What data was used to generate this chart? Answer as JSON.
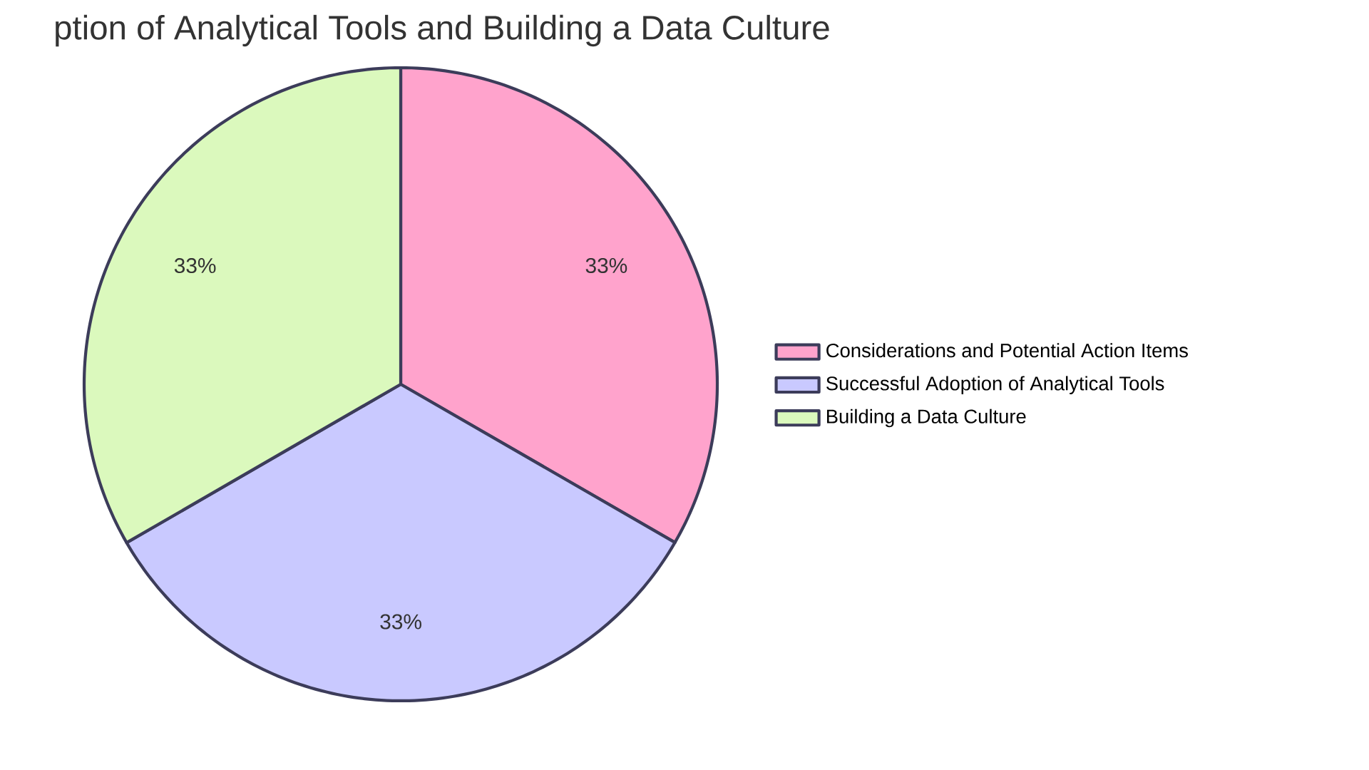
{
  "chart_data": {
    "type": "pie",
    "title": "ption of Analytical Tools and Building a Data Culture",
    "categories": [
      "Considerations and Potential Action Items",
      "Successful Adoption of Analytical Tools",
      "Building a Data Culture"
    ],
    "values": [
      33.33,
      33.33,
      33.34
    ],
    "colors": [
      "#ffa3cc",
      "#c9c9ff",
      "#dbf9bd"
    ],
    "value_labels": [
      "33%",
      "33%",
      "33%"
    ],
    "legend": "right"
  }
}
